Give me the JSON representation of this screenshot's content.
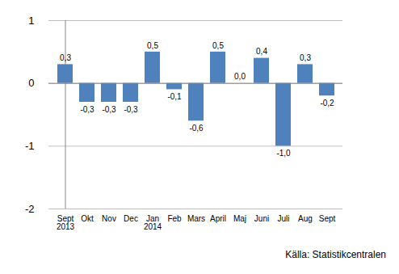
{
  "chart_data": {
    "type": "bar",
    "categories": [
      "Sept\n2013",
      "Okt",
      "Nov",
      "Dec",
      "Jan\n2014",
      "Feb",
      "Mars",
      "April",
      "Maj",
      "Juni",
      "Juli",
      "Aug",
      "Sept"
    ],
    "values": [
      0.3,
      -0.3,
      -0.3,
      -0.3,
      0.5,
      -0.1,
      -0.6,
      0.5,
      0.0,
      0.4,
      -1.0,
      0.3,
      -0.2
    ],
    "value_labels": [
      "0,3",
      "-0,3",
      "-0,3",
      "-0,3",
      "0,5",
      "-0,1",
      "-0,6",
      "0,5",
      "0,0",
      "0,4",
      "-1,0",
      "0,3",
      "-0,2"
    ],
    "color": "#4f81bd",
    "ylim": [
      -2,
      1
    ],
    "yticks": [
      -2,
      -1,
      0,
      1
    ],
    "grid": true,
    "data_labels": true,
    "caption": "Källa: Statistikcentralen"
  }
}
